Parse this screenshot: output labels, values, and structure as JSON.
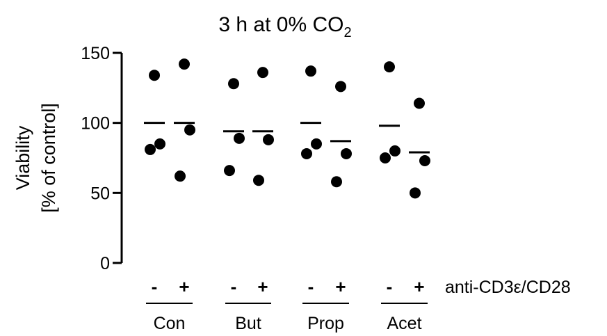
{
  "chart_data": {
    "type": "scatter",
    "title_main": "3 h at 0% CO",
    "title_sub": "2",
    "ylabel_line1": "Viability",
    "ylabel_line2": "[% of control]",
    "ylim": [
      0,
      150
    ],
    "yticks": [
      "0",
      "50",
      "100",
      "150"
    ],
    "stimulation_label": "anti-CD3ε/CD28",
    "groups": [
      {
        "label": "Con",
        "columns": [
          {
            "sign": "-",
            "points": [
              134,
              85,
              81
            ],
            "mean": 100
          },
          {
            "sign": "+",
            "points": [
              142,
              95,
              62
            ],
            "mean": 100
          }
        ]
      },
      {
        "label": "But",
        "columns": [
          {
            "sign": "-",
            "points": [
              128,
              89,
              66
            ],
            "mean": 94
          },
          {
            "sign": "+",
            "points": [
              136,
              88,
              59
            ],
            "mean": 94
          }
        ]
      },
      {
        "label": "Prop",
        "columns": [
          {
            "sign": "-",
            "points": [
              137,
              85,
              78
            ],
            "mean": 100
          },
          {
            "sign": "+",
            "points": [
              126,
              78,
              58
            ],
            "mean": 87
          }
        ]
      },
      {
        "label": "Acet",
        "columns": [
          {
            "sign": "-",
            "points": [
              140,
              80,
              75
            ],
            "mean": 98
          },
          {
            "sign": "+",
            "points": [
              114,
              73,
              50
            ],
            "mean": 79
          }
        ]
      }
    ]
  }
}
